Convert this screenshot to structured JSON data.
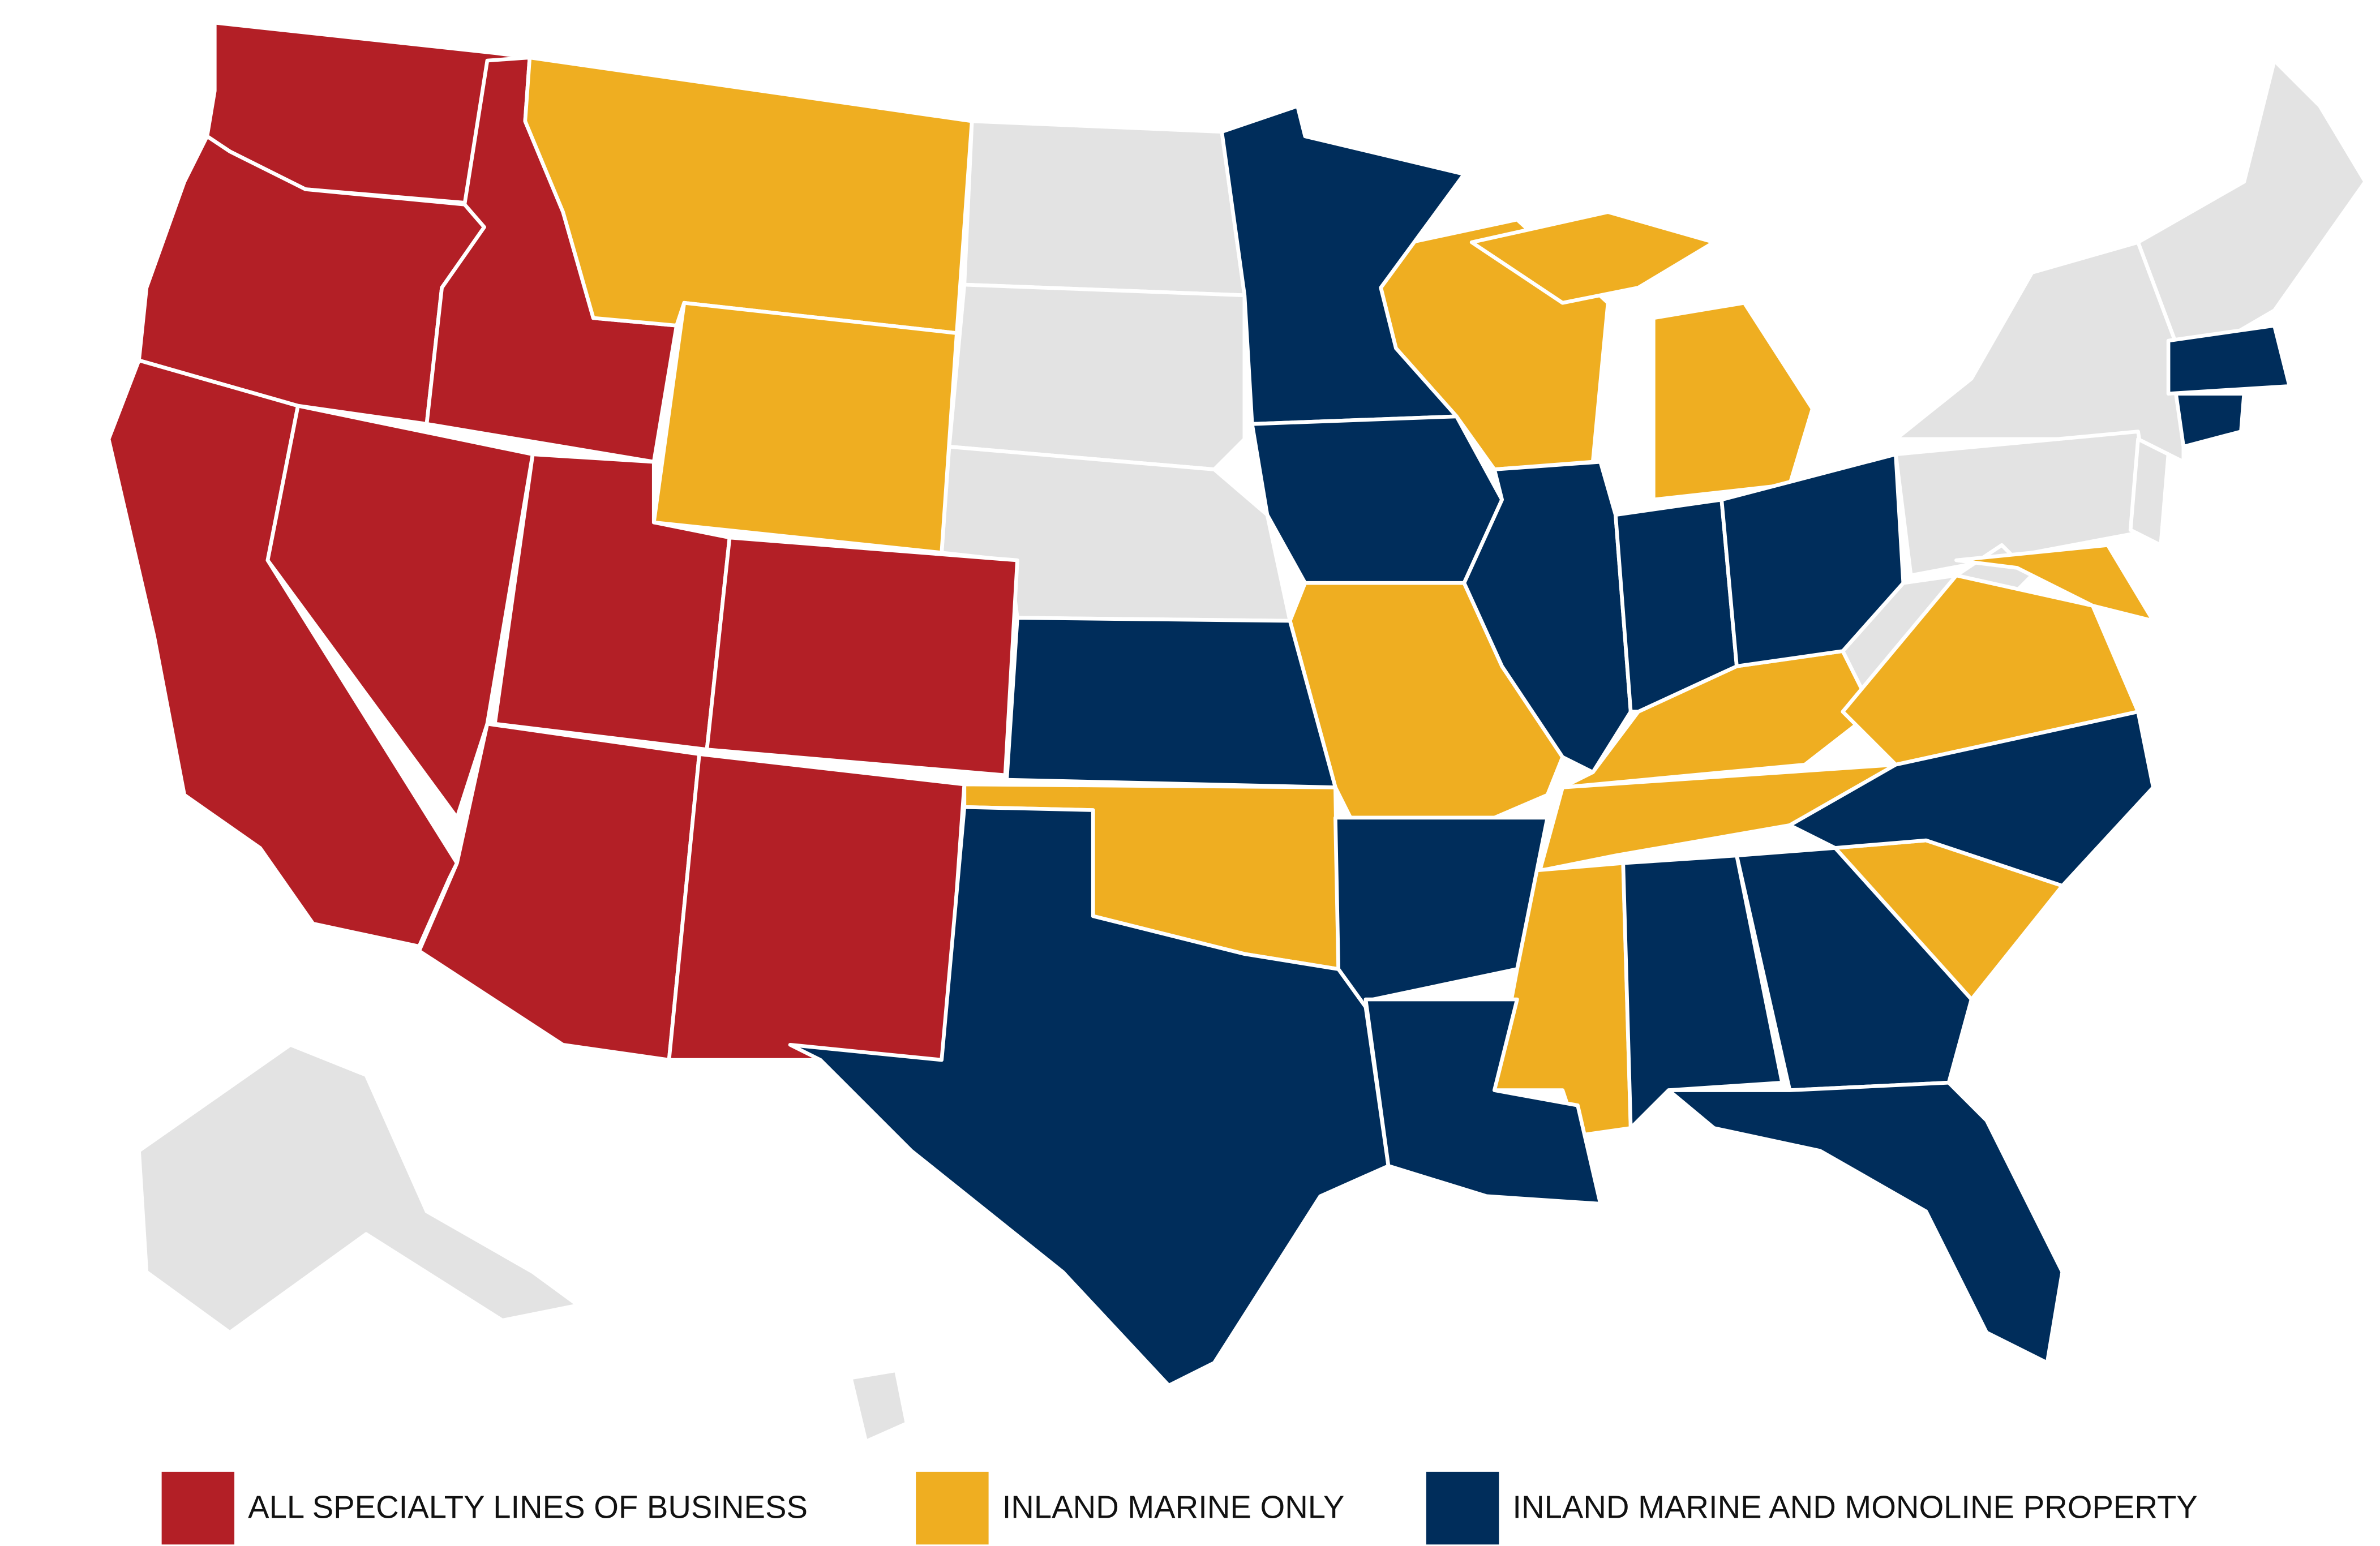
{
  "legend": {
    "items": [
      {
        "label": "ALL SPECIALTY LINES OF BUSINESS",
        "color": "#b31f26"
      },
      {
        "label": "INLAND MARINE ONLY",
        "color": "#efae21"
      },
      {
        "label": "INLAND MARINE AND MONOLINE PROPERTY",
        "color": "#002d5b"
      }
    ]
  }
}
